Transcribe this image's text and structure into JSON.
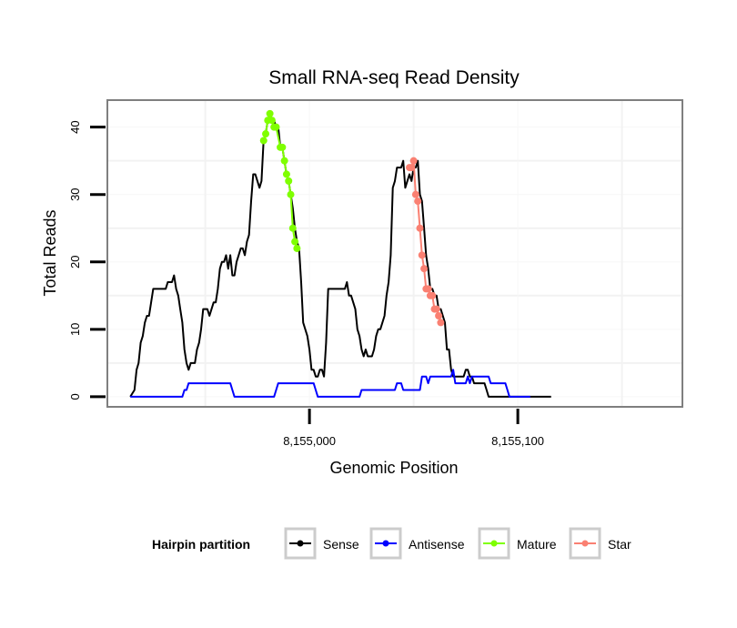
{
  "chart_data": {
    "type": "line",
    "title": "Small RNA-seq Read Density",
    "xlabel": "Genomic Position",
    "ylabel": "Total Reads",
    "xlim": [
      8154903,
      8155179
    ],
    "ylim": [
      -1.5,
      44
    ],
    "x_ticks": [
      8155000,
      8155100
    ],
    "x_tick_labels": [
      "8,155,000",
      "8,155,100"
    ],
    "x_minor_grid": [
      8154950,
      8155050,
      8155150
    ],
    "y_ticks": [
      0,
      10,
      20,
      30,
      40
    ],
    "y_tick_labels": [
      "0",
      "10",
      "20",
      "30",
      "40"
    ],
    "grid": true,
    "legend": {
      "title": "Hairpin partition",
      "position": "bottom",
      "entries": [
        {
          "name": "Sense",
          "color": "#000000"
        },
        {
          "name": "Antisense",
          "color": "#0000FF"
        },
        {
          "name": "Mature",
          "color": "#7FFF00"
        },
        {
          "name": "Star",
          "color": "#FA8072"
        }
      ]
    },
    "series": [
      {
        "name": "Sense",
        "color": "#000000",
        "points": [
          [
            8154914,
            0
          ],
          [
            8154916,
            1
          ],
          [
            8154917,
            4
          ],
          [
            8154918,
            5
          ],
          [
            8154919,
            8
          ],
          [
            8154920,
            9
          ],
          [
            8154921,
            11
          ],
          [
            8154922,
            12
          ],
          [
            8154923,
            12
          ],
          [
            8154924,
            14
          ],
          [
            8154925,
            16
          ],
          [
            8154926,
            16
          ],
          [
            8154928,
            16
          ],
          [
            8154931,
            16
          ],
          [
            8154932,
            17
          ],
          [
            8154933,
            17
          ],
          [
            8154934,
            17
          ],
          [
            8154935,
            18
          ],
          [
            8154936,
            16
          ],
          [
            8154937,
            15
          ],
          [
            8154938,
            13
          ],
          [
            8154939,
            11
          ],
          [
            8154940,
            7
          ],
          [
            8154941,
            5
          ],
          [
            8154942,
            4
          ],
          [
            8154943,
            5
          ],
          [
            8154945,
            5
          ],
          [
            8154946,
            7
          ],
          [
            8154947,
            8
          ],
          [
            8154948,
            10
          ],
          [
            8154949,
            13
          ],
          [
            8154951,
            13
          ],
          [
            8154952,
            12
          ],
          [
            8154953,
            13
          ],
          [
            8154954,
            14
          ],
          [
            8154955,
            14
          ],
          [
            8154956,
            16
          ],
          [
            8154957,
            19
          ],
          [
            8154958,
            20
          ],
          [
            8154959,
            20
          ],
          [
            8154960,
            21
          ],
          [
            8154961,
            19
          ],
          [
            8154962,
            21
          ],
          [
            8154963,
            18
          ],
          [
            8154964,
            18
          ],
          [
            8154965,
            20
          ],
          [
            8154966,
            21
          ],
          [
            8154967,
            22
          ],
          [
            8154968,
            22
          ],
          [
            8154969,
            21
          ],
          [
            8154970,
            23
          ],
          [
            8154971,
            24
          ],
          [
            8154972,
            29
          ],
          [
            8154973,
            33
          ],
          [
            8154974,
            33
          ],
          [
            8154975,
            32
          ],
          [
            8154976,
            31
          ],
          [
            8154977,
            32
          ],
          [
            8154978,
            38
          ],
          [
            8154979,
            39
          ],
          [
            8154980,
            41
          ],
          [
            8154981,
            42
          ],
          [
            8154982,
            41
          ],
          [
            8154983,
            41
          ],
          [
            8154984,
            40
          ],
          [
            8154985,
            40
          ],
          [
            8154986,
            37
          ],
          [
            8154987,
            37
          ],
          [
            8154988,
            35
          ],
          [
            8154989,
            33
          ],
          [
            8154990,
            32
          ],
          [
            8154991,
            30
          ],
          [
            8154992,
            28
          ],
          [
            8154993,
            25
          ],
          [
            8154994,
            23
          ],
          [
            8154995,
            22
          ],
          [
            8154996,
            17
          ],
          [
            8154997,
            11
          ],
          [
            8154998,
            10
          ],
          [
            8154999,
            9
          ],
          [
            8155000,
            7
          ],
          [
            8155001,
            4
          ],
          [
            8155002,
            4
          ],
          [
            8155003,
            3
          ],
          [
            8155004,
            3
          ],
          [
            8155005,
            4
          ],
          [
            8155006,
            4
          ],
          [
            8155007,
            3
          ],
          [
            8155008,
            8
          ],
          [
            8155009,
            16
          ],
          [
            8155012,
            16
          ],
          [
            8155016,
            16
          ],
          [
            8155017,
            16
          ],
          [
            8155018,
            17
          ],
          [
            8155019,
            15
          ],
          [
            8155020,
            15
          ],
          [
            8155021,
            14
          ],
          [
            8155022,
            13
          ],
          [
            8155023,
            10
          ],
          [
            8155024,
            9
          ],
          [
            8155025,
            7
          ],
          [
            8155026,
            6
          ],
          [
            8155027,
            7
          ],
          [
            8155028,
            6
          ],
          [
            8155030,
            6
          ],
          [
            8155031,
            7
          ],
          [
            8155032,
            9
          ],
          [
            8155033,
            10
          ],
          [
            8155034,
            10
          ],
          [
            8155035,
            11
          ],
          [
            8155036,
            12
          ],
          [
            8155037,
            15
          ],
          [
            8155038,
            17
          ],
          [
            8155039,
            21
          ],
          [
            8155040,
            31
          ],
          [
            8155041,
            32
          ],
          [
            8155042,
            34
          ],
          [
            8155044,
            34
          ],
          [
            8155045,
            35
          ],
          [
            8155046,
            31
          ],
          [
            8155047,
            32
          ],
          [
            8155048,
            33
          ],
          [
            8155049,
            32
          ],
          [
            8155050,
            34
          ],
          [
            8155051,
            34
          ],
          [
            8155052,
            35
          ],
          [
            8155053,
            30
          ],
          [
            8155054,
            29
          ],
          [
            8155055,
            25
          ],
          [
            8155056,
            21
          ],
          [
            8155057,
            19
          ],
          [
            8155058,
            16
          ],
          [
            8155059,
            16
          ],
          [
            8155060,
            15
          ],
          [
            8155061,
            15
          ],
          [
            8155062,
            13
          ],
          [
            8155063,
            13
          ],
          [
            8155064,
            12
          ],
          [
            8155065,
            11
          ],
          [
            8155066,
            7
          ],
          [
            8155067,
            7
          ],
          [
            8155068,
            4
          ],
          [
            8155069,
            3
          ],
          [
            8155070,
            3
          ],
          [
            8155073,
            3
          ],
          [
            8155074,
            3
          ],
          [
            8155075,
            4
          ],
          [
            8155076,
            4
          ],
          [
            8155077,
            3
          ],
          [
            8155078,
            3
          ],
          [
            8155079,
            2
          ],
          [
            8155081,
            2
          ],
          [
            8155084,
            2
          ],
          [
            8155085,
            1
          ],
          [
            8155086,
            0
          ],
          [
            8155100,
            0
          ],
          [
            8155116,
            0
          ]
        ]
      },
      {
        "name": "Antisense",
        "color": "#0000FF",
        "points": [
          [
            8154914,
            0
          ],
          [
            8154939,
            0
          ],
          [
            8154940,
            1
          ],
          [
            8154941,
            1
          ],
          [
            8154942,
            2
          ],
          [
            8154962,
            2
          ],
          [
            8154963,
            1
          ],
          [
            8154964,
            0
          ],
          [
            8154983,
            0
          ],
          [
            8154984,
            1
          ],
          [
            8154985,
            2
          ],
          [
            8155002,
            2
          ],
          [
            8155003,
            1
          ],
          [
            8155004,
            0
          ],
          [
            8155024,
            0
          ],
          [
            8155025,
            1
          ],
          [
            8155041,
            1
          ],
          [
            8155042,
            2
          ],
          [
            8155044,
            2
          ],
          [
            8155045,
            1
          ],
          [
            8155053,
            1
          ],
          [
            8155054,
            3
          ],
          [
            8155056,
            3
          ],
          [
            8155057,
            2
          ],
          [
            8155058,
            3
          ],
          [
            8155068,
            3
          ],
          [
            8155069,
            4
          ],
          [
            8155070,
            2
          ],
          [
            8155075,
            2
          ],
          [
            8155076,
            3
          ],
          [
            8155077,
            2
          ],
          [
            8155078,
            3
          ],
          [
            8155086,
            3
          ],
          [
            8155087,
            2
          ],
          [
            8155094,
            2
          ],
          [
            8155095,
            1
          ],
          [
            8155096,
            0
          ],
          [
            8155106,
            0
          ]
        ]
      },
      {
        "name": "Mature",
        "color": "#7FFF00",
        "points": [
          [
            8154978,
            38
          ],
          [
            8154979,
            39
          ],
          [
            8154980,
            41
          ],
          [
            8154981,
            42
          ],
          [
            8154982,
            41
          ],
          [
            8154983,
            40
          ],
          [
            8154984,
            40
          ],
          [
            8154986,
            37
          ],
          [
            8154987,
            37
          ],
          [
            8154988,
            35
          ],
          [
            8154989,
            33
          ],
          [
            8154990,
            32
          ],
          [
            8154991,
            30
          ],
          [
            8154992,
            25
          ],
          [
            8154993,
            23
          ],
          [
            8154994,
            22
          ]
        ]
      },
      {
        "name": "Star",
        "color": "#FA8072",
        "points": [
          [
            8155048,
            34
          ],
          [
            8155049,
            34
          ],
          [
            8155050,
            35
          ],
          [
            8155051,
            30
          ],
          [
            8155052,
            29
          ],
          [
            8155053,
            25
          ],
          [
            8155054,
            21
          ],
          [
            8155055,
            19
          ],
          [
            8155056,
            16
          ],
          [
            8155057,
            16
          ],
          [
            8155058,
            15
          ],
          [
            8155059,
            15
          ],
          [
            8155060,
            13
          ],
          [
            8155061,
            13
          ],
          [
            8155062,
            12
          ],
          [
            8155063,
            11
          ]
        ]
      }
    ]
  }
}
